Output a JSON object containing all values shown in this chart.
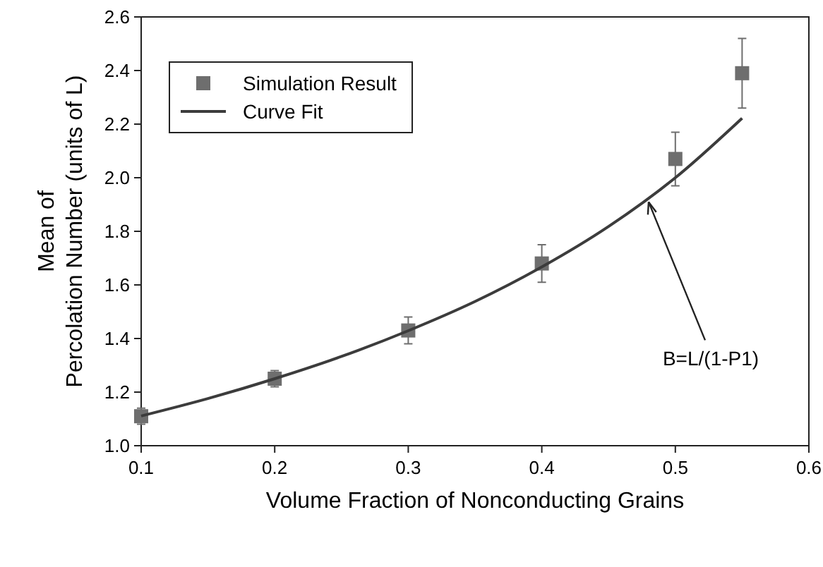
{
  "chart_data": {
    "type": "scatter",
    "xlabel": "Volume Fraction of Nonconducting Grains",
    "ylabel": "Mean of\nPercolation Number (units of L)",
    "xlim": [
      0.1,
      0.6
    ],
    "ylim": [
      1.0,
      2.6
    ],
    "xticks": [
      {
        "value": 0.1,
        "label": "0.1"
      },
      {
        "value": 0.2,
        "label": "0.2"
      },
      {
        "value": 0.3,
        "label": "0.3"
      },
      {
        "value": 0.4,
        "label": "0.4"
      },
      {
        "value": 0.5,
        "label": "0.5"
      },
      {
        "value": 0.6,
        "label": "0.6"
      }
    ],
    "yticks": [
      {
        "value": 1.0,
        "label": "1.0"
      },
      {
        "value": 1.2,
        "label": "1.2"
      },
      {
        "value": 1.4,
        "label": "1.4"
      },
      {
        "value": 1.6,
        "label": "1.6"
      },
      {
        "value": 1.8,
        "label": "1.8"
      },
      {
        "value": 2.0,
        "label": "2.0"
      },
      {
        "value": 2.2,
        "label": "2.2"
      },
      {
        "value": 2.4,
        "label": "2.4"
      },
      {
        "value": 2.6,
        "label": "2.6"
      }
    ],
    "legend": "top left",
    "grid": false,
    "series": [
      {
        "name": "Simulation Result",
        "marker": "square",
        "color": "#6e6e6e",
        "x": [
          0.1,
          0.2,
          0.3,
          0.4,
          0.5,
          0.55
        ],
        "values": [
          1.11,
          1.25,
          1.43,
          1.68,
          2.07,
          2.39
        ],
        "errors": [
          0.03,
          0.03,
          0.05,
          0.07,
          0.1,
          0.13
        ]
      },
      {
        "name": "Curve Fit",
        "type": "line",
        "marker": "none",
        "line_style": "solid",
        "color": "#3c3c3c",
        "x": [
          0.1,
          0.15,
          0.2,
          0.25,
          0.3,
          0.35,
          0.4,
          0.45,
          0.5,
          0.55
        ],
        "values": [
          1.111,
          1.176,
          1.25,
          1.333,
          1.429,
          1.538,
          1.667,
          1.818,
          2.0,
          2.222
        ]
      }
    ],
    "annotations": [
      {
        "text": "B=L/(1-P1)",
        "x": 0.48,
        "y": 1.92
      }
    ]
  }
}
